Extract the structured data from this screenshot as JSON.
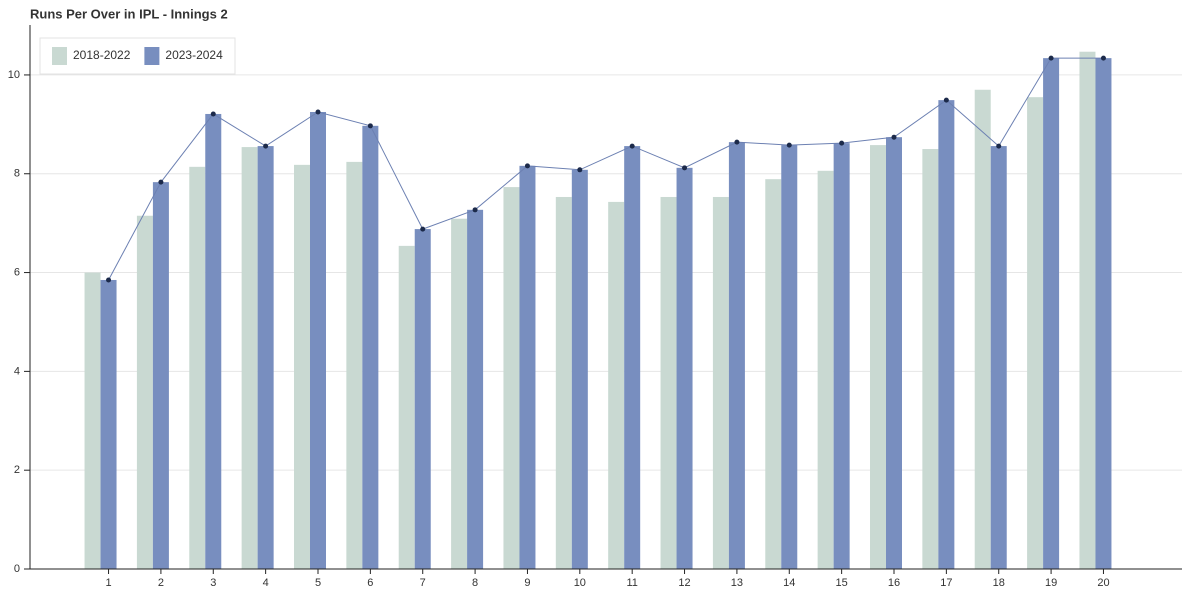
{
  "chart_data": {
    "type": "bar",
    "title": "Runs Per Over in IPL - Innings 2",
    "categories": [
      "1",
      "2",
      "3",
      "4",
      "5",
      "6",
      "7",
      "8",
      "9",
      "10",
      "11",
      "12",
      "13",
      "14",
      "15",
      "16",
      "17",
      "18",
      "19",
      "20"
    ],
    "series": [
      {
        "name": "2018-2022",
        "color": "#c9d9d2",
        "values": [
          6.0,
          7.15,
          8.14,
          8.54,
          8.18,
          8.24,
          6.54,
          7.09,
          7.73,
          7.53,
          7.43,
          7.53,
          7.53,
          7.89,
          8.06,
          8.58,
          8.5,
          9.7,
          9.55,
          10.47
        ]
      },
      {
        "name": "2023-2024",
        "color": "#788ebf",
        "line": true,
        "line_color": "#6c80b2",
        "marker_color": "#1c2a4a",
        "values": [
          5.85,
          7.83,
          9.21,
          8.56,
          9.25,
          8.97,
          6.88,
          7.27,
          8.16,
          8.08,
          8.56,
          8.12,
          8.64,
          8.58,
          8.62,
          8.74,
          9.49,
          8.56,
          10.34,
          10.34
        ]
      }
    ],
    "ylim": [
      0,
      10.95
    ],
    "yticks": [
      0,
      2,
      4,
      6,
      8,
      10
    ],
    "grid": true,
    "legend": "top-left"
  }
}
